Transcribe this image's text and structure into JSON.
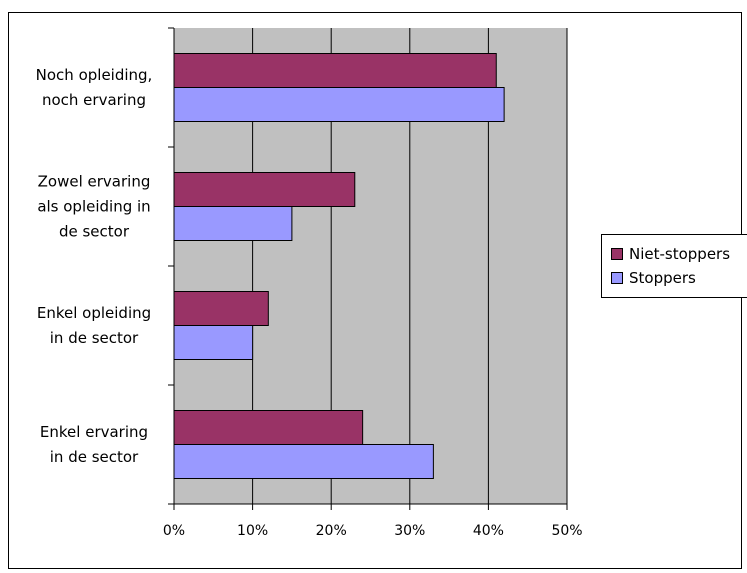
{
  "chart_data": {
    "type": "bar",
    "orientation": "horizontal",
    "title": "",
    "xlabel": "",
    "ylabel": "",
    "categories": [
      [
        "Noch opleiding,",
        "noch ervaring"
      ],
      [
        "Zowel ervaring",
        "als opleiding in",
        "de sector"
      ],
      [
        "Enkel opleiding",
        "in de sector"
      ],
      [
        "Enkel ervaring",
        "in de sector"
      ]
    ],
    "series": [
      {
        "name": "Niet-stoppers",
        "color": "#993366",
        "values": [
          41,
          23,
          12,
          24
        ]
      },
      {
        "name": "Stoppers",
        "color": "#9999FF",
        "values": [
          42,
          15,
          10,
          33
        ]
      }
    ],
    "xlim": [
      0,
      50
    ],
    "x_ticks": [
      "0%",
      "10%",
      "20%",
      "30%",
      "40%",
      "50%"
    ],
    "grid": true,
    "plot_background": "#C0C0C0",
    "legend_position": "right"
  }
}
